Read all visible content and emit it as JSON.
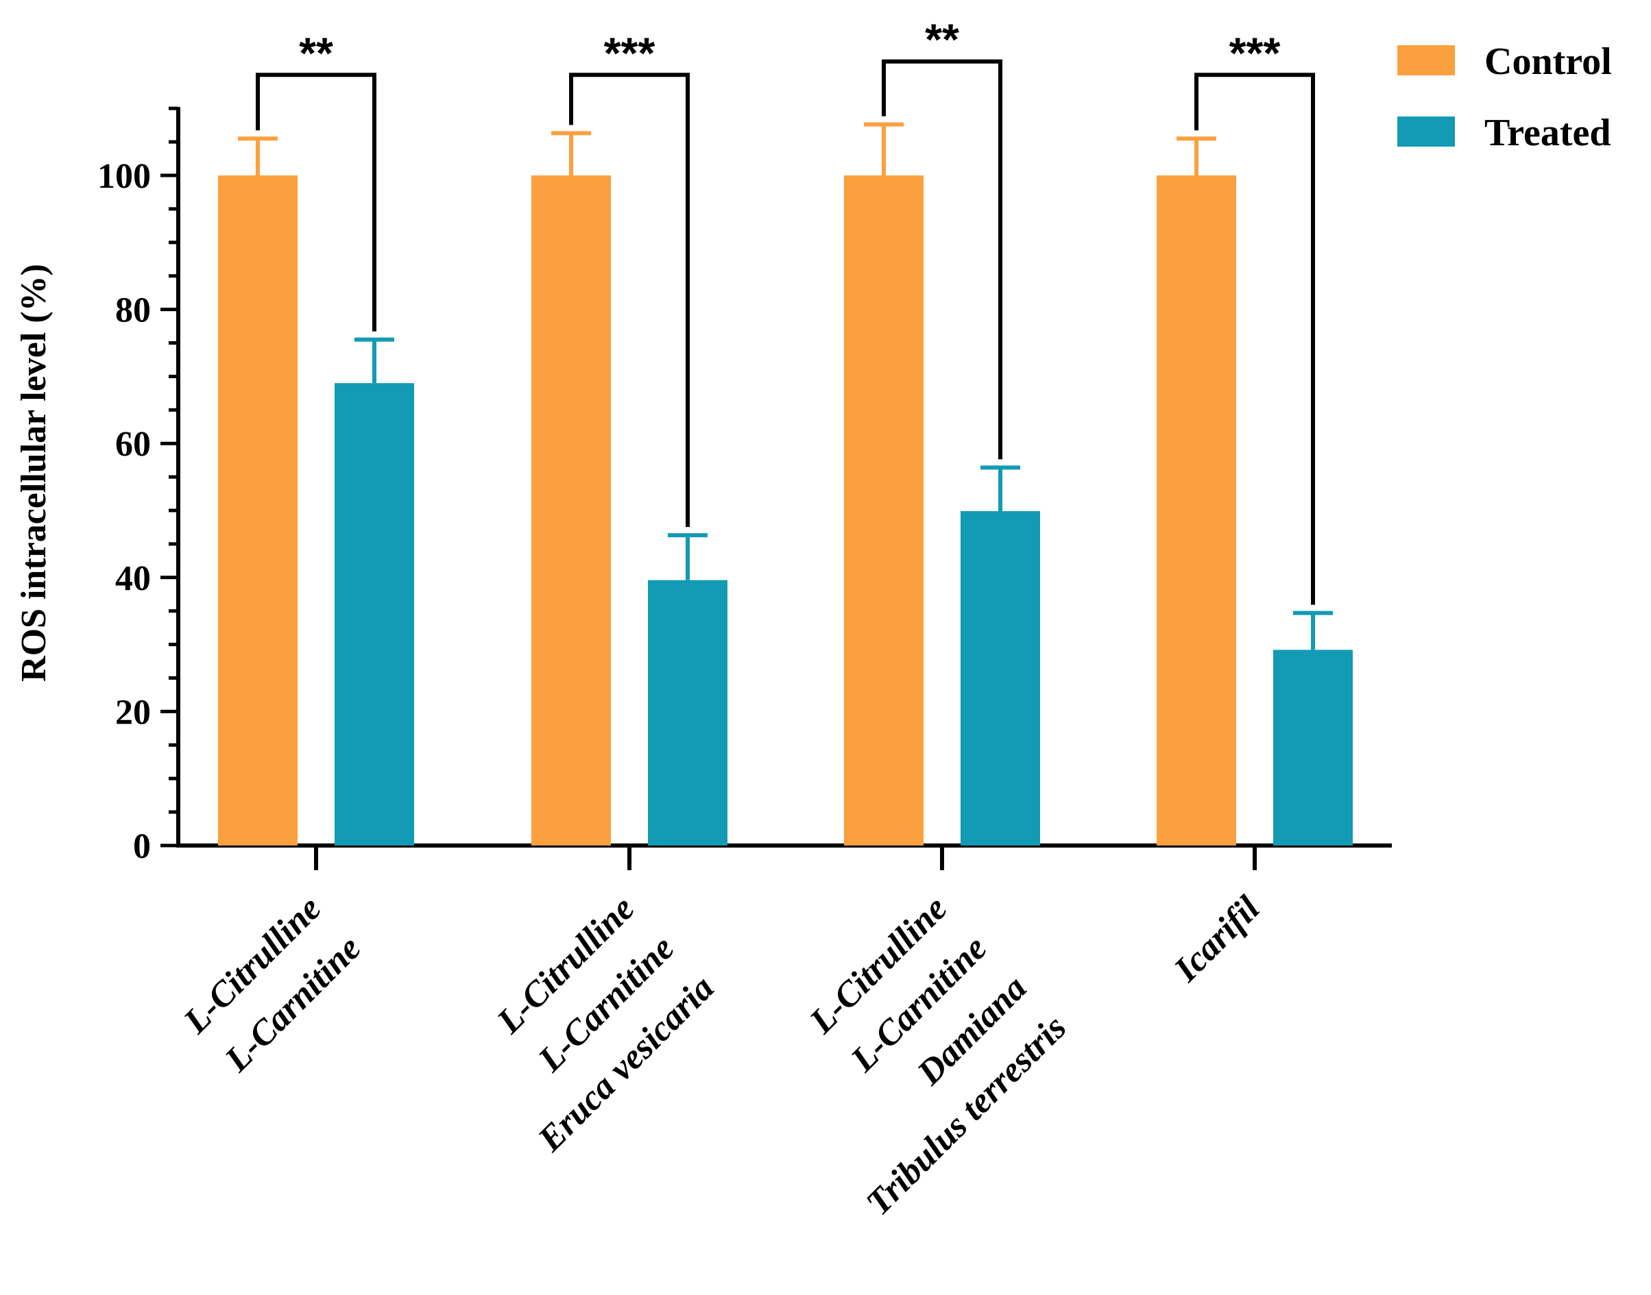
{
  "chart_data": {
    "type": "bar",
    "title": "",
    "xlabel": "",
    "ylabel": "ROS intracellular level (%)",
    "ylim": [
      0,
      110
    ],
    "yticks": [
      0,
      20,
      40,
      60,
      80,
      100
    ],
    "grid": false,
    "legend_position": "top-right",
    "categories": [
      [
        "L-Citrulline",
        "L-Carnitine"
      ],
      [
        "L-Citrulline",
        "L-Carnitine",
        "Eruca vesicaria"
      ],
      [
        "L-Citrulline",
        "L-Carnitine",
        "Damiana",
        "Tribulus terrestris"
      ],
      [
        "Icarifil"
      ]
    ],
    "series": [
      {
        "name": "Control",
        "color": "#FBA03F",
        "values": [
          100,
          100,
          100,
          100
        ],
        "errors": [
          5.5,
          6.3,
          7.6,
          5.5
        ]
      },
      {
        "name": "Treated",
        "color": "#139AB4",
        "values": [
          69,
          39.6,
          49.9,
          29.2
        ],
        "errors": [
          6.5,
          6.7,
          6.5,
          5.5
        ]
      }
    ],
    "significance": [
      {
        "group": 0,
        "label": "**",
        "bracket_top": 115
      },
      {
        "group": 1,
        "label": "***",
        "bracket_top": 115
      },
      {
        "group": 2,
        "label": "**",
        "bracket_top": 117
      },
      {
        "group": 3,
        "label": "***",
        "bracket_top": 115
      }
    ]
  }
}
